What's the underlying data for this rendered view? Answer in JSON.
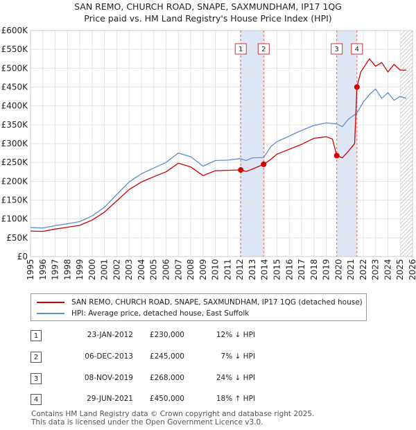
{
  "title_line1": "SAN REMO, CHURCH ROAD, SNAPE, SAXMUNDHAM, IP17 1QG",
  "title_line2": "Price paid vs. HM Land Registry's House Price Index (HPI)",
  "colors": {
    "price_line": "#cc0000",
    "hpi_line": "#5b8fc9",
    "marker_fill": "#cc0000",
    "dash": "#dd6666",
    "band": "#dde6f5"
  },
  "chart_data": {
    "type": "line",
    "title": "Price paid vs. HM Land Registry's House Price Index (HPI)",
    "xlabel": "",
    "ylabel": "",
    "xlim": [
      1995,
      2026
    ],
    "ylim": [
      0,
      600000
    ],
    "x_ticks": [
      "1995",
      "1996",
      "1997",
      "1998",
      "1999",
      "2000",
      "2001",
      "2002",
      "2003",
      "2004",
      "2005",
      "2006",
      "2007",
      "2008",
      "2009",
      "2010",
      "2011",
      "2012",
      "2013",
      "2014",
      "2015",
      "2016",
      "2017",
      "2018",
      "2019",
      "2020",
      "2021",
      "2022",
      "2023",
      "2024",
      "2025",
      "2026"
    ],
    "y_ticks": [
      {
        "value": 0,
        "label": "£0"
      },
      {
        "value": 50000,
        "label": "£50K"
      },
      {
        "value": 100000,
        "label": "£100K"
      },
      {
        "value": 150000,
        "label": "£150K"
      },
      {
        "value": 200000,
        "label": "£200K"
      },
      {
        "value": 250000,
        "label": "£250K"
      },
      {
        "value": 300000,
        "label": "£300K"
      },
      {
        "value": 350000,
        "label": "£350K"
      },
      {
        "value": 400000,
        "label": "£400K"
      },
      {
        "value": 450000,
        "label": "£450K"
      },
      {
        "value": 500000,
        "label": "£500K"
      },
      {
        "value": 550000,
        "label": "£550K"
      },
      {
        "value": 600000,
        "label": "£600K"
      }
    ],
    "grid": true,
    "series": [
      {
        "name": "SAN REMO, CHURCH ROAD, SNAPE, SAXMUNDHAM, IP17 1QG (detached house)",
        "x": [
          1995,
          1996,
          1997,
          1998,
          1999,
          2000,
          2001,
          2002,
          2003,
          2004,
          2005,
          2006,
          2007,
          2008,
          2009,
          2010,
          2011,
          2012.06,
          2012.5,
          2013,
          2013.92,
          2014.5,
          2015,
          2016,
          2017,
          2018,
          2019,
          2019.5,
          2019.85,
          2020.3,
          2020.8,
          2021.3,
          2021.49,
          2021.8,
          2022,
          2022.5,
          2023,
          2023.5,
          2024,
          2024.5,
          2025,
          2025.5
        ],
        "values": [
          68000,
          67000,
          73000,
          78000,
          83000,
          97000,
          118000,
          148000,
          178000,
          198000,
          212000,
          225000,
          248000,
          238000,
          215000,
          228000,
          229000,
          230000,
          226000,
          232000,
          245000,
          258000,
          272000,
          285000,
          298000,
          314000,
          318000,
          312000,
          268000,
          262000,
          280000,
          300000,
          450000,
          490000,
          500000,
          525000,
          505000,
          515000,
          490000,
          510000,
          495000,
          495000
        ]
      },
      {
        "name": "HPI: Average price, detached house, East Suffolk",
        "x": [
          1995,
          1996,
          1997,
          1998,
          1999,
          2000,
          2001,
          2002,
          2003,
          2004,
          2005,
          2006,
          2007,
          2008,
          2009,
          2010,
          2011,
          2012,
          2012.5,
          2013,
          2013.92,
          2014.5,
          2015,
          2016,
          2017,
          2018,
          2019,
          2019.85,
          2020.3,
          2020.8,
          2021.49,
          2022,
          2022.5,
          2023,
          2023.5,
          2024,
          2024.5,
          2025,
          2025.5
        ],
        "values": [
          77000,
          76000,
          82000,
          87000,
          93000,
          108000,
          131000,
          165000,
          198000,
          220000,
          235000,
          250000,
          275000,
          265000,
          240000,
          255000,
          256000,
          260000,
          255000,
          262000,
          263000,
          292000,
          305000,
          320000,
          335000,
          348000,
          355000,
          352000,
          345000,
          365000,
          381000,
          410000,
          430000,
          445000,
          420000,
          435000,
          415000,
          425000,
          420000
        ]
      }
    ],
    "transactions": [
      {
        "index": "1",
        "x": 2012.06,
        "value": 230000
      },
      {
        "index": "2",
        "x": 2013.92,
        "value": 245000
      },
      {
        "index": "3",
        "x": 2019.85,
        "value": 268000
      },
      {
        "index": "4",
        "x": 2021.49,
        "value": 450000
      }
    ],
    "highlight_bands": [
      [
        2012.06,
        2013.92
      ],
      [
        2019.85,
        2021.49
      ]
    ],
    "hatched_from": 2025.0
  },
  "legend": {
    "price_label": "SAN REMO, CHURCH ROAD, SNAPE, SAXMUNDHAM, IP17 1QG (detached house)",
    "hpi_label": "HPI: Average price, detached house, East Suffolk"
  },
  "table": [
    {
      "index": "1",
      "date": "23-JAN-2012",
      "price": "£230,000",
      "hpi": "12% ↓ HPI"
    },
    {
      "index": "2",
      "date": "06-DEC-2013",
      "price": "£245,000",
      "hpi": "7% ↓ HPI"
    },
    {
      "index": "3",
      "date": "08-NOV-2019",
      "price": "£268,000",
      "hpi": "24% ↓ HPI"
    },
    {
      "index": "4",
      "date": "29-JUN-2021",
      "price": "£450,000",
      "hpi": "18% ↑ HPI"
    }
  ],
  "footer_line1": "Contains HM Land Registry data © Crown copyright and database right 2025.",
  "footer_line2": "This data is licensed under the Open Government Licence v3.0."
}
